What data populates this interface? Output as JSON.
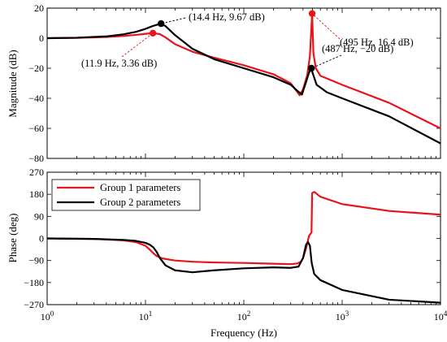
{
  "chart_data": [
    {
      "type": "line",
      "panel": "magnitude",
      "ylabel": "Magnitude (dB)",
      "xscale": "log",
      "xlim": [
        1,
        10000
      ],
      "ylim": [
        -80,
        20
      ],
      "yticks": [
        20,
        0,
        -20,
        -40,
        -60,
        -80
      ],
      "series": [
        {
          "color": "#e8141b",
          "x": [
            1,
            2,
            4,
            6,
            8,
            10,
            11.9,
            14,
            16,
            20,
            30,
            50,
            100,
            200,
            300,
            370,
            400,
            440,
            470,
            495,
            510,
            540,
            600,
            1000,
            3000,
            10000
          ],
          "y": [
            0,
            0.2,
            0.8,
            1.5,
            2.2,
            2.9,
            3.36,
            2.7,
            0.5,
            -4,
            -9,
            -13,
            -18,
            -24,
            -30,
            -38,
            -34,
            -25,
            -12,
            16.4,
            -10,
            -20,
            -25,
            -31,
            -43,
            -60
          ]
        },
        {
          "color": "#000000",
          "x": [
            1,
            2,
            4,
            6,
            8,
            10,
            12,
            14.4,
            16,
            20,
            30,
            50,
            100,
            200,
            300,
            350,
            390,
            430,
            460,
            487,
            500,
            550,
            700,
            1000,
            3000,
            10000
          ],
          "y": [
            0,
            0.3,
            1.2,
            2.6,
            4.2,
            6.2,
            8.2,
            9.67,
            8,
            2,
            -7,
            -14,
            -20,
            -26,
            -31,
            -35,
            -37.5,
            -29,
            -23,
            -20,
            -23,
            -31,
            -36,
            -40,
            -52,
            -70
          ]
        }
      ],
      "annotations": [
        {
          "text": "(14.4 Hz, 9.67 dB)",
          "x": 14.4,
          "y": 9.67,
          "color": "#000000"
        },
        {
          "text": "(11.9 Hz, 3.36 dB)",
          "x": 11.9,
          "y": 3.36,
          "color": "#e8141b"
        },
        {
          "text": "(495 Hz,  16.4 dB)",
          "x": 495,
          "y": 16.4,
          "color": "#e8141b"
        },
        {
          "text": "(487 Hz, −20 dB)",
          "x": 487,
          "y": -20,
          "color": "#000000"
        }
      ]
    },
    {
      "type": "line",
      "panel": "phase",
      "xlabel": "Frequency  (Hz)",
      "ylabel": "Phase (deg)",
      "xscale": "log",
      "xlim": [
        1,
        10000
      ],
      "ylim": [
        -270,
        270
      ],
      "yticks": [
        270,
        180,
        90,
        0,
        -90,
        -180,
        -270
      ],
      "legend_position": "top-left",
      "series": [
        {
          "name": "Group 1 parameters",
          "color": "#e8141b",
          "x": [
            1,
            3,
            6,
            8,
            10,
            11,
            12,
            13,
            15,
            20,
            30,
            50,
            100,
            200,
            300,
            350,
            380,
            400,
            430,
            460,
            480,
            488,
            495,
            520,
            600,
            1000,
            3000,
            10000
          ],
          "y": [
            0,
            -2,
            -8,
            -15,
            -30,
            -45,
            -60,
            -72,
            -82,
            -90,
            -95,
            -98,
            -100,
            -103,
            -105,
            -102,
            -95,
            -80,
            -40,
            10,
            20,
            25,
            185,
            190,
            170,
            140,
            112,
            97
          ]
        },
        {
          "name": "Group 2 parameters",
          "color": "#000000",
          "x": [
            1,
            3,
            6,
            8,
            10,
            11,
            12,
            13,
            14,
            16,
            20,
            30,
            50,
            100,
            200,
            300,
            360,
            400,
            430,
            450,
            470,
            490,
            520,
            600,
            1000,
            3000,
            10000
          ],
          "y": [
            0,
            -2,
            -6,
            -10,
            -18,
            -25,
            -36,
            -55,
            -80,
            -110,
            -130,
            -138,
            -130,
            -122,
            -118,
            -120,
            -115,
            -80,
            -25,
            -15,
            -30,
            -100,
            -145,
            -170,
            -210,
            -250,
            -262
          ]
        }
      ]
    }
  ],
  "x_tick_labels": [
    {
      "base": "10",
      "exp": "0"
    },
    {
      "base": "10",
      "exp": "1"
    },
    {
      "base": "10",
      "exp": "2"
    },
    {
      "base": "10",
      "exp": "3"
    },
    {
      "base": "10",
      "exp": "4"
    }
  ]
}
